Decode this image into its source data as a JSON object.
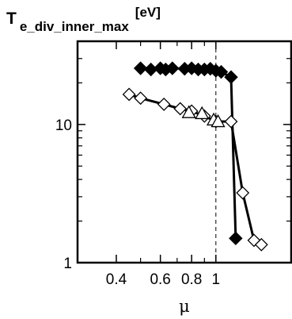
{
  "chart_data": {
    "type": "line",
    "title": {
      "base": "T",
      "subscript": "e_div_inner_max",
      "superscript": "[eV]"
    },
    "xlabel": "μ",
    "ylabel": "",
    "x_scale": "log",
    "y_scale": "log",
    "xlim": [
      0.28,
      2.0
    ],
    "ylim": [
      1,
      40
    ],
    "x_ticks": [
      {
        "value": 0.4,
        "label": "0.4"
      },
      {
        "value": 0.6,
        "label": "0.6"
      },
      {
        "value": 0.8,
        "label": "0.8"
      },
      {
        "value": 1.0,
        "label": "1"
      }
    ],
    "x_minor_ticks": [
      0.5,
      0.7,
      0.9
    ],
    "y_ticks": [
      {
        "value": 1,
        "label": "1"
      },
      {
        "value": 10,
        "label": "10"
      }
    ],
    "reference_line": {
      "x": 1.0,
      "style": "dashed"
    },
    "series": [
      {
        "marker": "filled-diamond",
        "color": "#000000",
        "points": [
          [
            0.5,
            25.5
          ],
          [
            0.55,
            25
          ],
          [
            0.6,
            25.5
          ],
          [
            0.63,
            25
          ],
          [
            0.67,
            25.5
          ],
          [
            0.75,
            25.3
          ],
          [
            0.8,
            25.5
          ],
          [
            0.85,
            25
          ],
          [
            0.9,
            25
          ],
          [
            0.95,
            25.3
          ],
          [
            1.0,
            24.5
          ],
          [
            1.05,
            24
          ],
          [
            1.15,
            22
          ],
          [
            1.2,
            1.5
          ]
        ]
      },
      {
        "marker": "open-diamond",
        "color": "#000000",
        "points": [
          [
            0.45,
            16.5
          ],
          [
            0.5,
            15.5
          ],
          [
            0.62,
            14
          ],
          [
            0.72,
            13
          ],
          [
            0.8,
            12.5
          ],
          [
            0.9,
            11.5
          ],
          [
            1.0,
            10.5
          ],
          [
            1.15,
            10.5
          ],
          [
            1.28,
            3.2
          ],
          [
            1.42,
            1.45
          ],
          [
            1.52,
            1.35
          ]
        ]
      },
      {
        "marker": "open-triangle",
        "color": "#000000",
        "points": [
          [
            0.78,
            12.2
          ],
          [
            0.88,
            12.0
          ],
          [
            0.98,
            10.8
          ],
          [
            1.02,
            10.5
          ]
        ]
      }
    ]
  }
}
